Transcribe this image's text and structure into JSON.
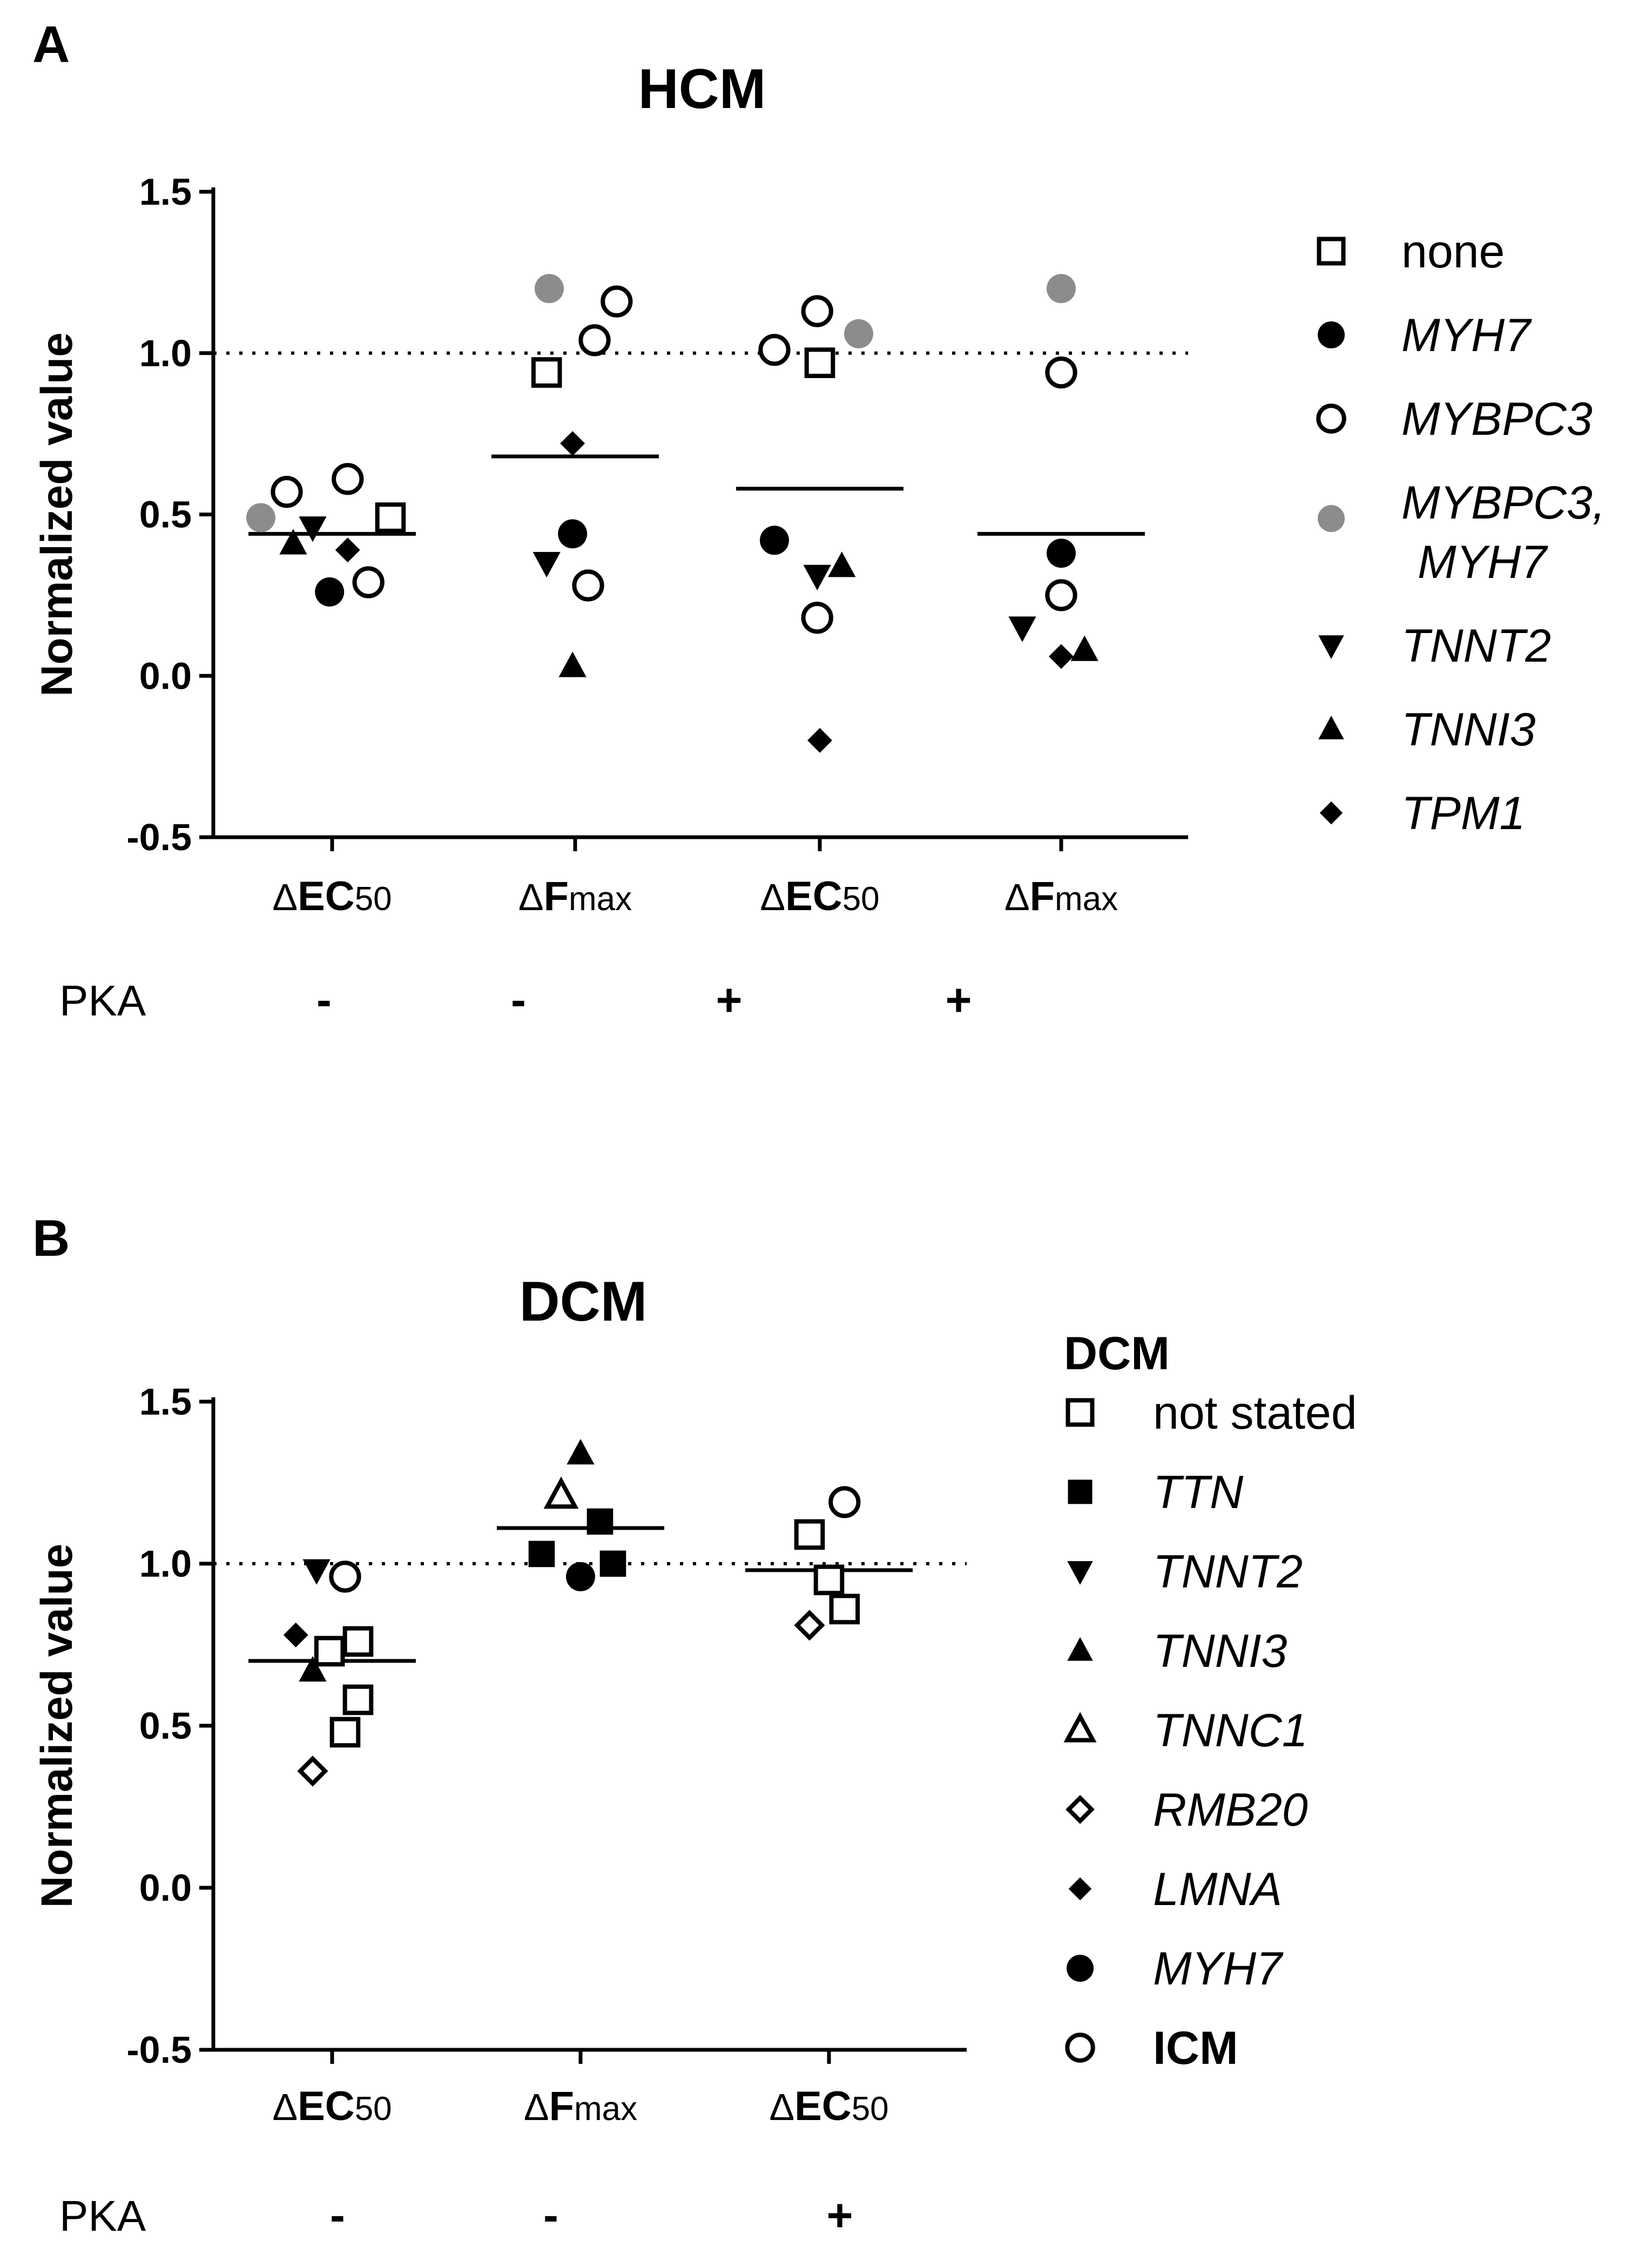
{
  "figure": {
    "panels": [
      {
        "letter": "A",
        "pka_label": "PKA"
      },
      {
        "letter": "B",
        "pka_label": "PKA"
      }
    ]
  },
  "colors": {
    "black": "#000000",
    "gray": "#8c8c8c",
    "white": "#ffffff"
  },
  "chart_data": [
    {
      "type": "scatter",
      "title": "HCM",
      "ylabel": "Normalized value",
      "ylim": [
        -0.5,
        1.5
      ],
      "yticks": [
        "1.5",
        "1.0",
        "0.5",
        "0.0",
        "-0.5"
      ],
      "reference_line": 1.0,
      "categories": [
        {
          "symbol": "Δ",
          "main": "EC",
          "sub": "50",
          "pka": "-"
        },
        {
          "symbol": "Δ",
          "main": "F",
          "sub": "max",
          "pka": "-"
        },
        {
          "symbol": "Δ",
          "main": "EC",
          "sub": "50",
          "pka": "+"
        },
        {
          "symbol": "Δ",
          "main": "F",
          "sub": "max",
          "pka": "+"
        }
      ],
      "means": [
        0.44,
        0.68,
        0.58,
        0.44
      ],
      "legend": {
        "header": "",
        "entries": [
          {
            "label": "none",
            "marker": "square-open",
            "italic": false,
            "bold": false
          },
          {
            "label": "MYH7",
            "marker": "circle-filled",
            "italic": true,
            "bold": false
          },
          {
            "label": "MYBPC3",
            "marker": "circle-open",
            "italic": true,
            "bold": false
          },
          {
            "label": "MYBPC3,",
            "label2": "MYH7",
            "marker": "circle-gray",
            "italic": true,
            "bold": false
          },
          {
            "label": "TNNT2",
            "marker": "triangle-down",
            "italic": true,
            "bold": false
          },
          {
            "label": "TNNI3",
            "marker": "triangle-up",
            "italic": true,
            "bold": false
          },
          {
            "label": "TPM1",
            "marker": "diamond-filled",
            "italic": true,
            "bold": false
          }
        ]
      },
      "points": [
        {
          "cat": 0,
          "offset": -0.55,
          "y": 0.49,
          "marker": "circle-gray"
        },
        {
          "cat": 0,
          "offset": -0.35,
          "y": 0.57,
          "marker": "circle-open"
        },
        {
          "cat": 0,
          "offset": -0.3,
          "y": 0.41,
          "marker": "triangle-up"
        },
        {
          "cat": 0,
          "offset": -0.15,
          "y": 0.46,
          "marker": "triangle-down"
        },
        {
          "cat": 0,
          "offset": -0.02,
          "y": 0.26,
          "marker": "circle-filled"
        },
        {
          "cat": 0,
          "offset": 0.12,
          "y": 0.61,
          "marker": "circle-open"
        },
        {
          "cat": 0,
          "offset": 0.12,
          "y": 0.39,
          "marker": "diamond-filled"
        },
        {
          "cat": 0,
          "offset": 0.28,
          "y": 0.29,
          "marker": "circle-open"
        },
        {
          "cat": 0,
          "offset": 0.45,
          "y": 0.49,
          "marker": "square-open"
        },
        {
          "cat": 1,
          "offset": -0.2,
          "y": 1.2,
          "marker": "circle-gray"
        },
        {
          "cat": 1,
          "offset": -0.22,
          "y": 0.94,
          "marker": "square-open"
        },
        {
          "cat": 1,
          "offset": -0.22,
          "y": 0.35,
          "marker": "triangle-down"
        },
        {
          "cat": 1,
          "offset": -0.02,
          "y": 0.72,
          "marker": "diamond-filled"
        },
        {
          "cat": 1,
          "offset": -0.02,
          "y": 0.44,
          "marker": "circle-filled"
        },
        {
          "cat": 1,
          "offset": -0.02,
          "y": 0.03,
          "marker": "triangle-up"
        },
        {
          "cat": 1,
          "offset": 0.1,
          "y": 0.28,
          "marker": "circle-open"
        },
        {
          "cat": 1,
          "offset": 0.15,
          "y": 1.04,
          "marker": "circle-open"
        },
        {
          "cat": 1,
          "offset": 0.32,
          "y": 1.16,
          "marker": "circle-open"
        },
        {
          "cat": 2,
          "offset": -0.35,
          "y": 1.01,
          "marker": "circle-open"
        },
        {
          "cat": 2,
          "offset": -0.35,
          "y": 0.42,
          "marker": "circle-filled"
        },
        {
          "cat": 2,
          "offset": -0.02,
          "y": 1.13,
          "marker": "circle-open"
        },
        {
          "cat": 2,
          "offset": 0.0,
          "y": 0.97,
          "marker": "square-open"
        },
        {
          "cat": 2,
          "offset": -0.02,
          "y": 0.31,
          "marker": "triangle-down"
        },
        {
          "cat": 2,
          "offset": -0.02,
          "y": 0.18,
          "marker": "circle-open"
        },
        {
          "cat": 2,
          "offset": 0.0,
          "y": -0.2,
          "marker": "diamond-filled"
        },
        {
          "cat": 2,
          "offset": 0.17,
          "y": 0.34,
          "marker": "triangle-up"
        },
        {
          "cat": 2,
          "offset": 0.3,
          "y": 1.06,
          "marker": "circle-gray"
        },
        {
          "cat": 3,
          "offset": 0.0,
          "y": 1.2,
          "marker": "circle-gray"
        },
        {
          "cat": 3,
          "offset": 0.0,
          "y": 0.94,
          "marker": "circle-open"
        },
        {
          "cat": 3,
          "offset": 0.0,
          "y": 0.38,
          "marker": "circle-filled"
        },
        {
          "cat": 3,
          "offset": 0.0,
          "y": 0.25,
          "marker": "circle-open"
        },
        {
          "cat": 3,
          "offset": -0.3,
          "y": 0.15,
          "marker": "triangle-down"
        },
        {
          "cat": 3,
          "offset": 0.0,
          "y": 0.06,
          "marker": "diamond-filled"
        },
        {
          "cat": 3,
          "offset": 0.18,
          "y": 0.08,
          "marker": "triangle-up"
        }
      ]
    },
    {
      "type": "scatter",
      "title": "DCM",
      "ylabel": "Normalized value",
      "ylim": [
        -0.5,
        1.5
      ],
      "yticks": [
        "1.5",
        "1.0",
        "0.5",
        "0.0",
        "-0.5"
      ],
      "reference_line": 1.0,
      "categories": [
        {
          "symbol": "Δ",
          "main": "EC",
          "sub": "50",
          "pka": "-"
        },
        {
          "symbol": "Δ",
          "main": "F",
          "sub": "max",
          "pka": "-"
        },
        {
          "symbol": "Δ",
          "main": "EC",
          "sub": "50",
          "pka": "+"
        }
      ],
      "means": [
        0.7,
        1.11,
        0.98
      ],
      "legend": {
        "header": "DCM",
        "entries": [
          {
            "label": "not stated",
            "marker": "square-open",
            "italic": false,
            "bold": false
          },
          {
            "label": "TTN",
            "marker": "square-filled",
            "italic": true,
            "bold": false
          },
          {
            "label": "TNNT2",
            "marker": "triangle-down",
            "italic": true,
            "bold": false
          },
          {
            "label": "TNNI3",
            "marker": "triangle-up",
            "italic": true,
            "bold": false
          },
          {
            "label": "TNNC1",
            "marker": "triangle-up-open",
            "italic": true,
            "bold": false
          },
          {
            "label": "RMB20",
            "marker": "diamond-open",
            "italic": true,
            "bold": false
          },
          {
            "label": "LMNA",
            "marker": "diamond-filled",
            "italic": true,
            "bold": false
          },
          {
            "label": "MYH7",
            "marker": "circle-filled",
            "italic": true,
            "bold": false
          },
          {
            "label": "ICM",
            "marker": "circle-open",
            "italic": false,
            "bold": true
          }
        ]
      },
      "points": [
        {
          "cat": 0,
          "offset": -0.12,
          "y": 0.98,
          "marker": "triangle-down"
        },
        {
          "cat": 0,
          "offset": 0.1,
          "y": 0.96,
          "marker": "circle-open"
        },
        {
          "cat": 0,
          "offset": -0.28,
          "y": 0.78,
          "marker": "diamond-filled"
        },
        {
          "cat": 0,
          "offset": -0.02,
          "y": 0.73,
          "marker": "square-open"
        },
        {
          "cat": 0,
          "offset": 0.2,
          "y": 0.76,
          "marker": "square-open"
        },
        {
          "cat": 0,
          "offset": -0.15,
          "y": 0.67,
          "marker": "triangle-up"
        },
        {
          "cat": 0,
          "offset": 0.2,
          "y": 0.58,
          "marker": "square-open"
        },
        {
          "cat": 0,
          "offset": 0.1,
          "y": 0.48,
          "marker": "square-open"
        },
        {
          "cat": 0,
          "offset": -0.15,
          "y": 0.36,
          "marker": "diamond-open"
        },
        {
          "cat": 1,
          "offset": 0.0,
          "y": 1.34,
          "marker": "triangle-up"
        },
        {
          "cat": 1,
          "offset": -0.15,
          "y": 1.21,
          "marker": "triangle-up-open"
        },
        {
          "cat": 1,
          "offset": 0.15,
          "y": 1.13,
          "marker": "square-filled"
        },
        {
          "cat": 1,
          "offset": -0.3,
          "y": 1.03,
          "marker": "square-filled"
        },
        {
          "cat": 1,
          "offset": 0.25,
          "y": 1.0,
          "marker": "square-filled"
        },
        {
          "cat": 1,
          "offset": 0.0,
          "y": 0.96,
          "marker": "circle-filled"
        },
        {
          "cat": 2,
          "offset": -0.15,
          "y": 1.09,
          "marker": "square-open"
        },
        {
          "cat": 2,
          "offset": 0.12,
          "y": 1.19,
          "marker": "circle-open"
        },
        {
          "cat": 2,
          "offset": 0.0,
          "y": 0.95,
          "marker": "square-open"
        },
        {
          "cat": 2,
          "offset": 0.12,
          "y": 0.86,
          "marker": "square-open"
        },
        {
          "cat": 2,
          "offset": -0.15,
          "y": 0.81,
          "marker": "diamond-open"
        }
      ]
    }
  ]
}
